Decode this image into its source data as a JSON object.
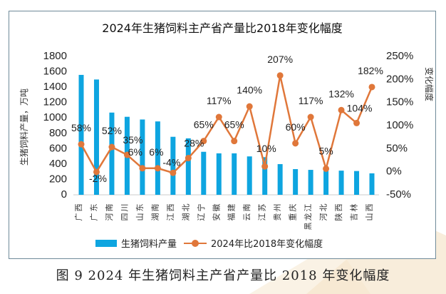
{
  "caption": "图 9   2024 年生猪饲料主产省产量比 2018 年变化幅度",
  "chart_data": {
    "type": "bar",
    "title": "2024年生猪饲料主产省产量比2018年变化幅度",
    "xlabel": "",
    "ylabel": "生猪饲料产量，万吨",
    "y2label": "变化幅度",
    "ylim": [
      0,
      1800
    ],
    "yticks": [
      0,
      200,
      400,
      600,
      800,
      1000,
      1200,
      1400,
      1600,
      1800
    ],
    "y2lim": [
      -50,
      250
    ],
    "y2ticks": [
      "-50%",
      "0%",
      "50%",
      "100%",
      "150%",
      "200%",
      "250%"
    ],
    "y2tick_values": [
      -50,
      0,
      50,
      100,
      150,
      200,
      250
    ],
    "grid": false,
    "legend_position": "bottom",
    "categories": [
      "广西",
      "广东",
      "河南",
      "四川",
      "山东",
      "湖南",
      "江西",
      "湖北",
      "辽宁",
      "安徽",
      "福建",
      "云南",
      "江苏",
      "贵州",
      "重庆",
      "黑龙江",
      "河北",
      "陕西",
      "吉林",
      "山西"
    ],
    "series": [
      {
        "name": "生猪饲料产量",
        "type": "bar",
        "axis": "left",
        "color": "#0ea5e0",
        "values": [
          1550,
          1490,
          1060,
          1005,
          970,
          945,
          745,
          725,
          550,
          530,
          530,
          490,
          480,
          390,
          325,
          315,
          320,
          305,
          300,
          270
        ]
      },
      {
        "name": "2024年比2018年变化幅度",
        "type": "line",
        "axis": "right",
        "color": "#e0773a",
        "values": [
          58,
          -2,
          52,
          35,
          6,
          6,
          -4,
          28,
          65,
          117,
          65,
          140,
          10,
          207,
          60,
          117,
          5,
          132,
          104,
          182
        ],
        "labels": [
          "58%",
          "-2%",
          "52%",
          "35%",
          "6%",
          "6%",
          "-4%",
          "28%",
          "65%",
          "117%",
          "65%",
          "140%",
          "10%",
          "207%",
          "60%",
          "117%",
          "5%",
          "132%",
          "104%",
          "182%"
        ]
      }
    ]
  },
  "legend": {
    "bar_label": "生猪饲料产量",
    "line_label": "2024年比2018年变化幅度"
  }
}
